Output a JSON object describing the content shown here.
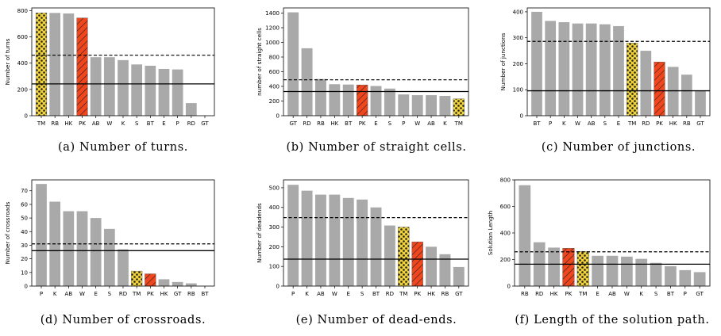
{
  "colors": {
    "bar": "#a9a9a9",
    "tm": "#f2d43a",
    "pk": "#f0461e",
    "line": "#000000"
  },
  "chart_data": [
    {
      "type": "bar",
      "caption": "(a) Number of turns.",
      "ylabel": "Number of turns",
      "categories": [
        "TM",
        "RB",
        "HK",
        "PK",
        "AB",
        "W",
        "K",
        "S",
        "BT",
        "E",
        "P",
        "RD",
        "GT"
      ],
      "values": [
        782,
        782,
        778,
        744,
        445,
        445,
        423,
        390,
        380,
        356,
        352,
        96,
        0
      ],
      "ylim": [
        0,
        820
      ],
      "yticks": [
        0,
        200,
        400,
        600,
        800
      ],
      "dashed": 460,
      "solid": 242
    },
    {
      "type": "bar",
      "caption": "(b) Number of straight cells.",
      "ylabel": "number of straight cells",
      "categories": [
        "GT",
        "RD",
        "RB",
        "HK",
        "BT",
        "PK",
        "E",
        "S",
        "P",
        "W",
        "AB",
        "K",
        "TM"
      ],
      "values": [
        1410,
        920,
        500,
        430,
        425,
        420,
        405,
        370,
        290,
        280,
        280,
        270,
        230
      ],
      "ylim": [
        0,
        1470
      ],
      "yticks": [
        0,
        200,
        400,
        600,
        800,
        1000,
        1200,
        1400
      ],
      "dashed": 490,
      "solid": 330
    },
    {
      "type": "bar",
      "caption": "(c) Number of junctions.",
      "ylabel": "Number of junctions",
      "categories": [
        "BT",
        "P",
        "K",
        "W",
        "AB",
        "S",
        "E",
        "TM",
        "RD",
        "PK",
        "HK",
        "RB",
        "GT"
      ],
      "values": [
        400,
        365,
        360,
        355,
        355,
        352,
        345,
        280,
        250,
        207,
        188,
        158,
        95
      ],
      "ylim": [
        0,
        415
      ],
      "yticks": [
        0,
        100,
        200,
        300,
        400
      ],
      "dashed": 286,
      "solid": 96
    },
    {
      "type": "bar",
      "caption": "(d) Number of crossroads.",
      "ylabel": "Number of crossroads",
      "categories": [
        "P",
        "K",
        "AB",
        "W",
        "E",
        "S",
        "RD",
        "TM",
        "PK",
        "HK",
        "GT",
        "RB",
        "BT"
      ],
      "values": [
        75,
        62,
        55,
        55,
        50,
        42,
        27,
        11,
        9,
        5,
        3,
        2,
        0
      ],
      "ylim": [
        0,
        78
      ],
      "yticks": [
        0,
        10,
        20,
        30,
        40,
        50,
        60,
        70
      ],
      "dashed": 31,
      "solid": 26
    },
    {
      "type": "bar",
      "caption": "(e) Number of dead-ends.",
      "ylabel": "Number of deadends",
      "categories": [
        "P",
        "K",
        "AB",
        "W",
        "E",
        "S",
        "BT",
        "RD",
        "TM",
        "PK",
        "HK",
        "RB",
        "GT"
      ],
      "values": [
        515,
        485,
        465,
        465,
        448,
        440,
        400,
        308,
        300,
        225,
        200,
        162,
        97
      ],
      "ylim": [
        0,
        540
      ],
      "yticks": [
        0,
        100,
        200,
        300,
        400,
        500
      ],
      "dashed": 348,
      "solid": 137
    },
    {
      "type": "bar",
      "caption": "(f) Length of the solution path.",
      "ylabel": "Solution Length",
      "categories": [
        "RB",
        "RD",
        "HK",
        "PK",
        "TM",
        "E",
        "AB",
        "W",
        "K",
        "S",
        "BT",
        "P",
        "GT"
      ],
      "values": [
        760,
        330,
        290,
        285,
        260,
        228,
        228,
        222,
        205,
        175,
        150,
        120,
        105
      ],
      "ylim": [
        0,
        800
      ],
      "yticks": [
        0,
        200,
        400,
        600,
        800
      ],
      "dashed": 258,
      "solid": 165
    }
  ]
}
